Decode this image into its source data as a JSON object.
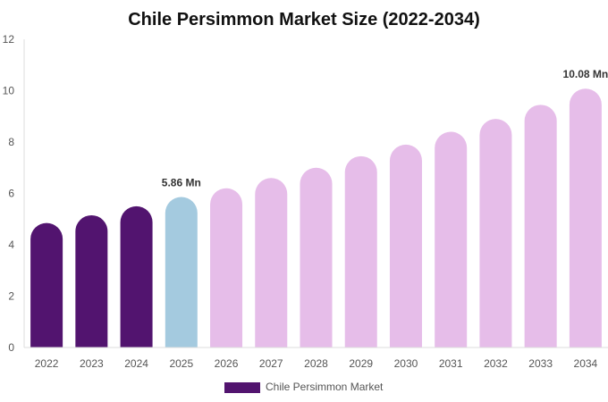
{
  "chart_data": {
    "type": "bar",
    "title": "Chile Persimmon Market Size (2022-2034)",
    "categories": [
      "2022",
      "2023",
      "2024",
      "2025",
      "2026",
      "2027",
      "2028",
      "2029",
      "2030",
      "2031",
      "2032",
      "2033",
      "2034"
    ],
    "series": [
      {
        "name": "Chile Persimmon Market",
        "values": [
          4.85,
          5.15,
          5.5,
          5.86,
          6.2,
          6.6,
          7.0,
          7.45,
          7.9,
          8.4,
          8.9,
          9.45,
          10.08
        ]
      }
    ],
    "ylim": [
      0,
      12
    ],
    "yticks": [
      0,
      2,
      4,
      6,
      8,
      10,
      12
    ],
    "grid": false,
    "legend_position": "bottom",
    "data_labels": [
      {
        "category": "2025",
        "text": "5.86 Mn"
      },
      {
        "category": "2034",
        "text": "10.08 Mn"
      }
    ],
    "colors": {
      "historical": "#52146f",
      "current": "#a4cadf",
      "forecast": "#e6bde9",
      "legend": "#52146f",
      "axis": "#dddddd"
    },
    "bar_styles": [
      "historical",
      "historical",
      "historical",
      "current",
      "forecast",
      "forecast",
      "forecast",
      "forecast",
      "forecast",
      "forecast",
      "forecast",
      "forecast",
      "forecast"
    ]
  }
}
